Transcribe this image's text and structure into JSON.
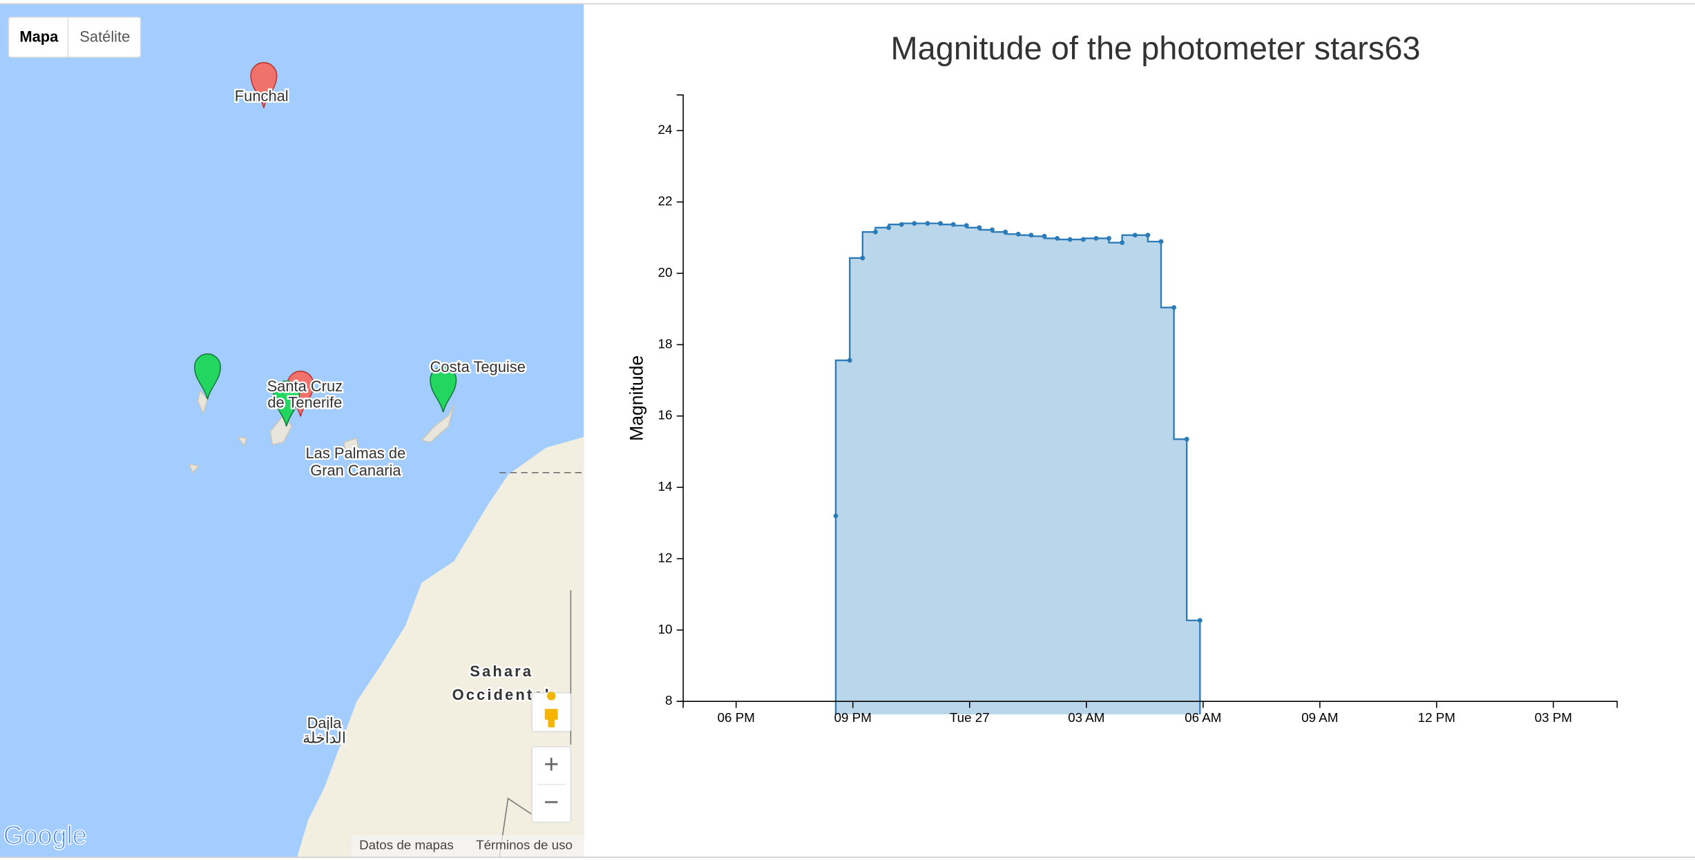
{
  "map": {
    "controls": {
      "map": "Mapa",
      "satellite": "Satélite",
      "zoom_in": "+",
      "zoom_out": "−"
    },
    "labels": {
      "funchal": "Funchal",
      "santa_cruz_1": "Santa Cruz",
      "santa_cruz_2": "de Tenerife",
      "costa_teguise": "Costa Teguise",
      "las_palmas_1": "Las Palmas de",
      "las_palmas_2": "Gran Canaria",
      "sahara_1": "Sahara",
      "sahara_2": "Occidental",
      "dajla": "Dajla",
      "dajla_ar": "الداخلة"
    },
    "footer": {
      "logo": "Google",
      "data": "Datos de mapas",
      "terms": "Términos de uso"
    }
  },
  "chart_data": {
    "type": "step",
    "title": "Magnitude of the photometer stars63",
    "y_label": "Magnitude",
    "color": "#2b7bb9",
    "fill": "#bad6ea",
    "x": [
      20.56,
      20.92,
      21.25,
      21.58,
      21.92,
      22.25,
      22.58,
      22.92,
      23.25,
      23.58,
      23.92,
      24.25,
      24.58,
      24.92,
      25.25,
      25.58,
      25.92,
      26.25,
      26.58,
      26.92,
      27.25,
      27.58,
      27.92,
      28.25,
      28.58,
      28.92,
      29.25,
      29.58,
      29.92
    ],
    "values": [
      13.2,
      17.56,
      20.43,
      21.16,
      21.28,
      21.37,
      21.4,
      21.4,
      21.4,
      21.37,
      21.34,
      21.28,
      21.22,
      21.16,
      21.1,
      21.07,
      21.04,
      20.98,
      20.95,
      20.95,
      20.98,
      20.98,
      20.86,
      21.07,
      21.07,
      20.89,
      19.04,
      15.35,
      10.27
    ],
    "xlim": [
      16.64,
      40.64
    ],
    "xticks": [
      {
        "value": 18,
        "label": "06 PM"
      },
      {
        "value": 21,
        "label": "09 PM"
      },
      {
        "value": 24,
        "label": "Tue 27"
      },
      {
        "value": 27,
        "label": "03 AM"
      },
      {
        "value": 30,
        "label": "06 AM"
      },
      {
        "value": 33,
        "label": "09 AM"
      },
      {
        "value": 36,
        "label": "12 PM"
      },
      {
        "value": 39,
        "label": "03 PM"
      }
    ],
    "ylim": [
      8,
      25
    ],
    "yticks": [
      8,
      10,
      12,
      14,
      16,
      18,
      20,
      22,
      24
    ]
  }
}
